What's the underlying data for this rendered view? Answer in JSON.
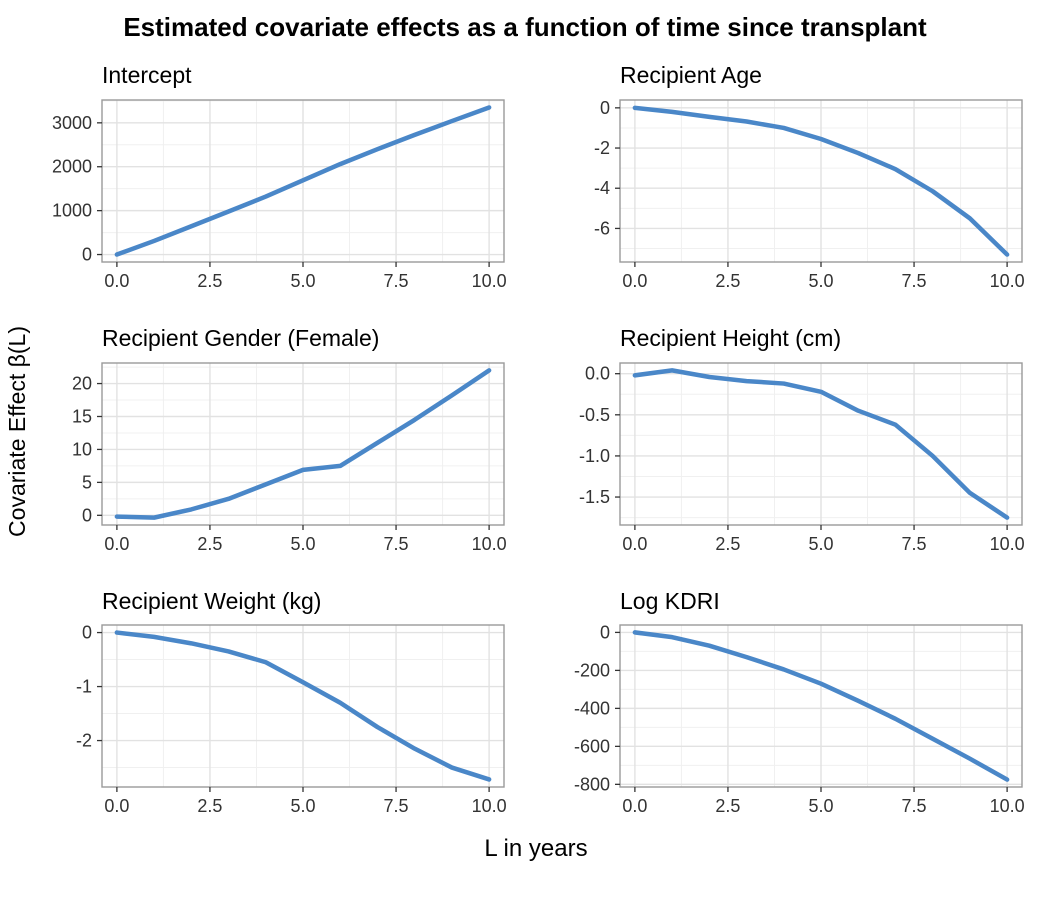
{
  "title": "Estimated covariate effects as a function of time since transplant",
  "x_axis_label": "L in years",
  "y_axis_label": "Covariate Effect β(L)",
  "style": {
    "line_color": "#4a87c8",
    "grid_major_color": "#e2e2e2",
    "grid_minor_color": "#f0f0f0",
    "panel_border_color": "#9a9a9a",
    "tick_color": "#333333",
    "tick_label_color": "#333333",
    "panel_background": "#ffffff"
  },
  "chart_data": [
    {
      "type": "line",
      "title": "Intercept",
      "x": [
        0,
        1,
        2,
        3,
        4,
        5,
        6,
        7,
        8,
        9,
        10
      ],
      "y": [
        0,
        310,
        645,
        980,
        1320,
        1690,
        2060,
        2400,
        2725,
        3040,
        3350
      ],
      "xlim": [
        -0.4,
        10.4
      ],
      "ylim": [
        -170,
        3520
      ],
      "xticks": {
        "values": [
          0,
          2.5,
          5,
          7.5,
          10
        ],
        "labels": [
          "0.0",
          "2.5",
          "5.0",
          "7.5",
          "10.0"
        ]
      },
      "yticks": {
        "values": [
          0,
          1000,
          2000,
          3000
        ],
        "labels": [
          "0",
          "1000",
          "2000",
          "3000"
        ]
      },
      "x_minor": [
        1.25,
        3.75,
        6.25,
        8.75
      ],
      "y_minor": [
        500,
        1500,
        2500,
        3500
      ],
      "grid": true,
      "legend": "none"
    },
    {
      "type": "line",
      "title": "Recipient Age",
      "x": [
        0,
        1,
        2,
        3,
        4,
        5,
        6,
        7,
        8,
        9,
        10
      ],
      "y": [
        0,
        -0.2,
        -0.45,
        -0.68,
        -1.0,
        -1.55,
        -2.25,
        -3.05,
        -4.15,
        -5.5,
        -7.3
      ],
      "xlim": [
        -0.4,
        10.4
      ],
      "ylim": [
        -7.67,
        0.39
      ],
      "xticks": {
        "values": [
          0,
          2.5,
          5,
          7.5,
          10
        ],
        "labels": [
          "0.0",
          "2.5",
          "5.0",
          "7.5",
          "10.0"
        ]
      },
      "yticks": {
        "values": [
          0,
          -2,
          -4,
          -6
        ],
        "labels": [
          "0",
          "-2",
          "-4",
          "-6"
        ]
      },
      "x_minor": [
        1.25,
        3.75,
        6.25,
        8.75
      ],
      "y_minor": [
        -1,
        -3,
        -5,
        -7
      ],
      "grid": true,
      "legend": "none"
    },
    {
      "type": "line",
      "title": "Recipient Gender (Female)",
      "x": [
        0,
        1,
        2,
        3,
        4,
        5,
        6,
        7,
        8,
        9,
        10
      ],
      "y": [
        -0.2,
        -0.35,
        0.9,
        2.5,
        4.7,
        6.9,
        7.5,
        11.0,
        14.5,
        18.2,
        22.0
      ],
      "xlim": [
        -0.4,
        10.4
      ],
      "ylim": [
        -1.47,
        23.12
      ],
      "xticks": {
        "values": [
          0,
          2.5,
          5,
          7.5,
          10
        ],
        "labels": [
          "0.0",
          "2.5",
          "5.0",
          "7.5",
          "10.0"
        ]
      },
      "yticks": {
        "values": [
          0,
          5,
          10,
          15,
          20
        ],
        "labels": [
          "0",
          "5",
          "10",
          "15",
          "20"
        ]
      },
      "x_minor": [
        1.25,
        3.75,
        6.25,
        8.75
      ],
      "y_minor": [
        2.5,
        7.5,
        12.5,
        17.5,
        22.5
      ],
      "grid": true,
      "legend": "none"
    },
    {
      "type": "line",
      "title": "Recipient Height (cm)",
      "x": [
        0,
        1,
        2,
        3,
        4,
        5,
        6,
        7,
        8,
        9,
        10
      ],
      "y": [
        -0.02,
        0.04,
        -0.04,
        -0.09,
        -0.12,
        -0.22,
        -0.45,
        -0.62,
        -1.0,
        -1.45,
        -1.75
      ],
      "xlim": [
        -0.4,
        10.4
      ],
      "ylim": [
        -1.84,
        0.13
      ],
      "xticks": {
        "values": [
          0,
          2.5,
          5,
          7.5,
          10
        ],
        "labels": [
          "0.0",
          "2.5",
          "5.0",
          "7.5",
          "10.0"
        ]
      },
      "yticks": {
        "values": [
          0,
          -0.5,
          -1.0,
          -1.5
        ],
        "labels": [
          "0.0",
          "-0.5",
          "-1.0",
          "-1.5"
        ]
      },
      "x_minor": [
        1.25,
        3.75,
        6.25,
        8.75
      ],
      "y_minor": [
        -0.25,
        -0.75,
        -1.25,
        -1.75
      ],
      "grid": true,
      "legend": "none"
    },
    {
      "type": "line",
      "title": "Recipient Weight (kg)",
      "x": [
        0,
        1,
        2,
        3,
        4,
        5,
        6,
        7,
        8,
        9,
        10
      ],
      "y": [
        0,
        -0.08,
        -0.2,
        -0.35,
        -0.55,
        -0.92,
        -1.3,
        -1.75,
        -2.15,
        -2.5,
        -2.72
      ],
      "xlim": [
        -0.4,
        10.4
      ],
      "ylim": [
        -2.86,
        0.14
      ],
      "xticks": {
        "values": [
          0,
          2.5,
          5,
          7.5,
          10
        ],
        "labels": [
          "0.0",
          "2.5",
          "5.0",
          "7.5",
          "10.0"
        ]
      },
      "yticks": {
        "values": [
          0,
          -1,
          -2
        ],
        "labels": [
          "0",
          "-1",
          "-2"
        ]
      },
      "x_minor": [
        1.25,
        3.75,
        6.25,
        8.75
      ],
      "y_minor": [
        -0.5,
        -1.5,
        -2.5
      ],
      "grid": true,
      "legend": "none"
    },
    {
      "type": "line",
      "title": "Log KDRI",
      "x": [
        0,
        1,
        2,
        3,
        4,
        5,
        6,
        7,
        8,
        9,
        10
      ],
      "y": [
        0,
        -25,
        -70,
        -130,
        -195,
        -270,
        -360,
        -455,
        -560,
        -665,
        -775
      ],
      "xlim": [
        -0.4,
        10.4
      ],
      "ylim": [
        -814,
        39
      ],
      "xticks": {
        "values": [
          0,
          2.5,
          5,
          7.5,
          10
        ],
        "labels": [
          "0.0",
          "2.5",
          "5.0",
          "7.5",
          "10.0"
        ]
      },
      "yticks": {
        "values": [
          0,
          -200,
          -400,
          -600,
          -800
        ],
        "labels": [
          "0",
          "-200",
          "-400",
          "-600",
          "-800"
        ]
      },
      "x_minor": [
        1.25,
        3.75,
        6.25,
        8.75
      ],
      "y_minor": [
        -100,
        -300,
        -500,
        -700
      ],
      "grid": true,
      "legend": "none"
    }
  ]
}
